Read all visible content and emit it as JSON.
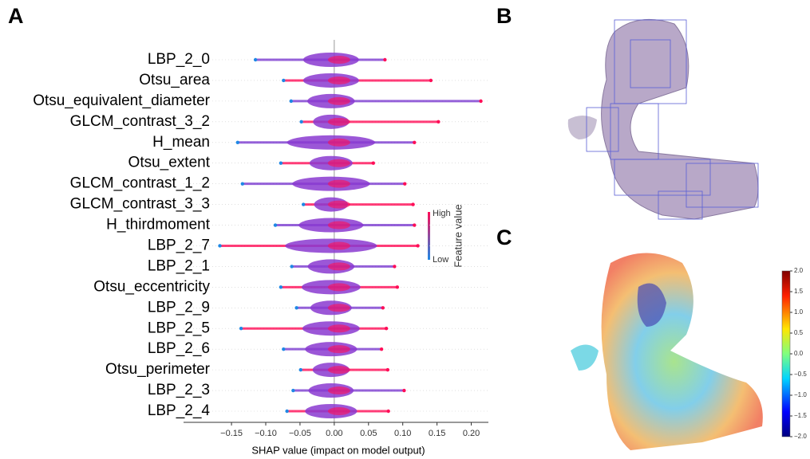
{
  "panel_labels": [
    "A",
    "B",
    "C"
  ],
  "chart_data": [
    {
      "type": "beeswarm",
      "xlabel": "SHAP value (impact on model output)",
      "categories": [
        "LBP_2_0",
        "Otsu_area",
        "Otsu_equivalent_diameter",
        "GLCM_contrast_3_2",
        "H_mean",
        "Otsu_extent",
        "GLCM_contrast_1_2",
        "GLCM_contrast_3_3",
        "H_thirdmoment",
        "LBP_2_7",
        "LBP_2_1",
        "Otsu_eccentricity",
        "LBP_2_9",
        "LBP_2_5",
        "LBP_2_6",
        "Otsu_perimeter",
        "LBP_2_3",
        "LBP_2_4"
      ],
      "min": [
        -0.115,
        -0.074,
        -0.063,
        -0.048,
        -0.141,
        -0.078,
        -0.134,
        -0.045,
        -0.086,
        -0.167,
        -0.062,
        -0.078,
        -0.055,
        -0.136,
        -0.074,
        -0.049,
        -0.06,
        -0.069
      ],
      "max": [
        0.074,
        0.141,
        0.214,
        0.152,
        0.117,
        0.057,
        0.103,
        0.115,
        0.117,
        0.122,
        0.088,
        0.092,
        0.071,
        0.076,
        0.069,
        0.078,
        0.102,
        0.079
      ],
      "xlim": [
        -0.22,
        0.225
      ],
      "xticks": [
        {
          "value": -0.15,
          "label": "−0.15"
        },
        {
          "value": -0.1,
          "label": "−0.10"
        },
        {
          "value": -0.05,
          "label": "−0.05"
        },
        {
          "value": 0,
          "label": "0.00"
        },
        {
          "value": 0.05,
          "label": "0.05"
        },
        {
          "value": 0.1,
          "label": "0.10"
        },
        {
          "value": 0.15,
          "label": "0.15"
        },
        {
          "value": 0.2,
          "label": "0.20"
        }
      ],
      "legend": {
        "title": "Feature value",
        "high": "High",
        "low": "Low",
        "high_color": "#ff0d57",
        "low_color": "#1e88e5"
      }
    },
    {
      "type": "colorbar",
      "ylim": [
        -2,
        2
      ],
      "yticks": [
        {
          "value": 2,
          "label": "2.0"
        },
        {
          "value": 1.5,
          "label": "1.5"
        },
        {
          "value": 1,
          "label": "1.0"
        },
        {
          "value": 0.5,
          "label": "0.5"
        },
        {
          "value": 0,
          "label": "0.0"
        },
        {
          "value": -0.5,
          "label": "−0.5"
        },
        {
          "value": -1,
          "label": "−1.0"
        },
        {
          "value": -1.5,
          "label": "−1.5"
        },
        {
          "value": -2,
          "label": "−2.0"
        }
      ]
    }
  ]
}
